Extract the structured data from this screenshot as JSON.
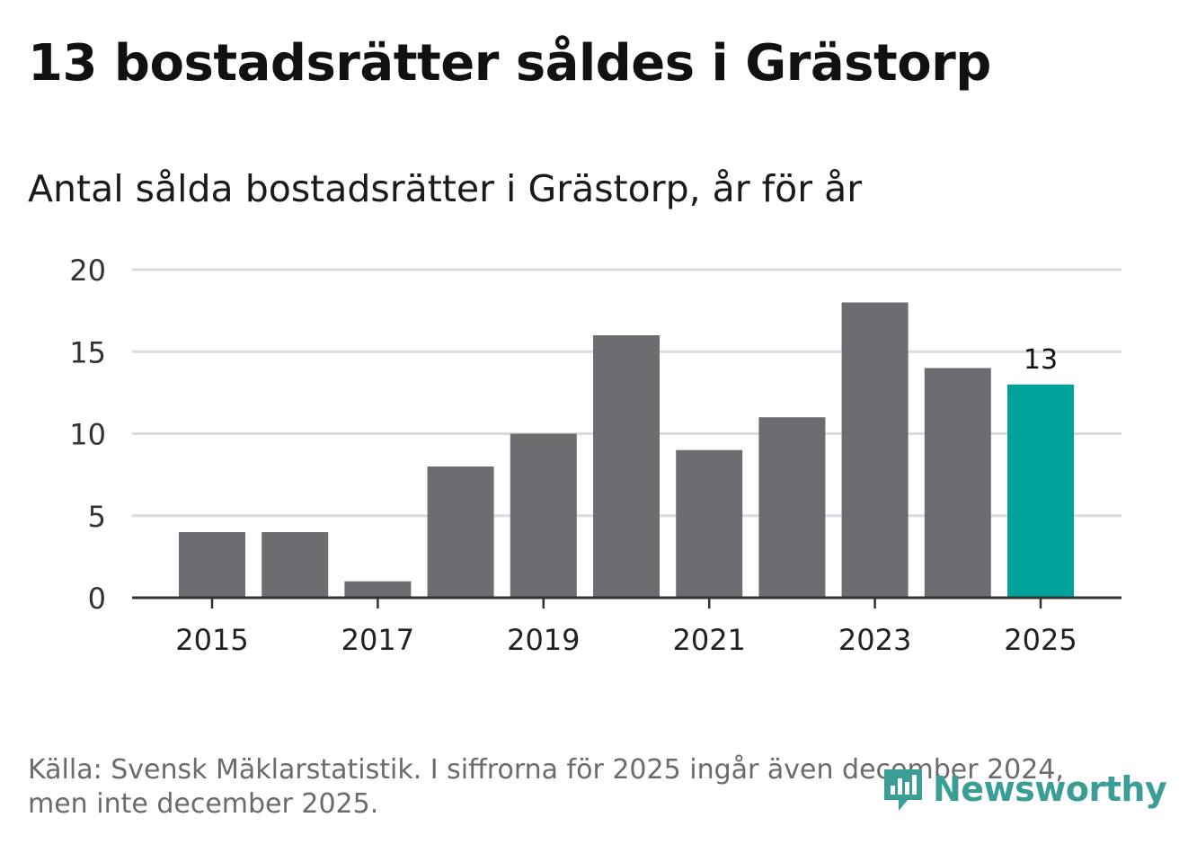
{
  "title": "13 bostadsrätter såldes i Grästorp",
  "subtitle": "Antal sålda bostadsrätter i Grästorp, år för år",
  "footer": {
    "line1": "Källa: Svensk Mäklarstatistik. I siffrorna för 2025 ingår även december 2024,",
    "line2": "men inte december 2025."
  },
  "logo": {
    "text": "Newsworthy",
    "icon": "newsworthy-logo-icon"
  },
  "colors": {
    "bar": "#6d6c71",
    "highlight": "#00a39a",
    "grid": "#dcdcdc",
    "axis": "#333333"
  },
  "chart_data": {
    "type": "bar",
    "title": "Antal sålda bostadsrätter i Grästorp, år för år",
    "categories": [
      "2015",
      "2016",
      "2017",
      "2018",
      "2019",
      "2020",
      "2021",
      "2022",
      "2023",
      "2024",
      "2025"
    ],
    "values": [
      4,
      4,
      1,
      8,
      10,
      16,
      9,
      11,
      18,
      14,
      13
    ],
    "xticks": [
      "2015",
      "2017",
      "2019",
      "2021",
      "2023",
      "2025"
    ],
    "yticks": [
      0,
      5,
      10,
      15,
      20
    ],
    "ylim": [
      0,
      20
    ],
    "highlight_category": "2025",
    "highlight_label": "13",
    "xlabel": "",
    "ylabel": ""
  }
}
